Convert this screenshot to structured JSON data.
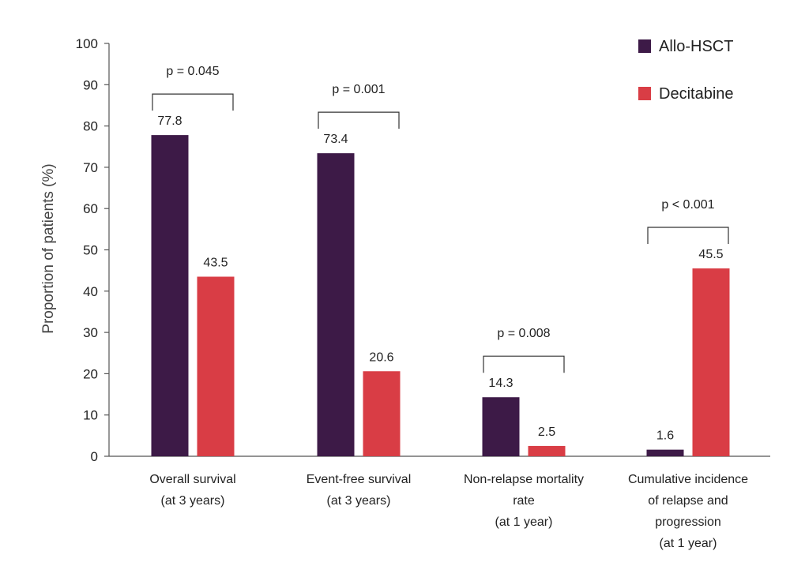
{
  "chart_data": {
    "type": "bar",
    "title": "",
    "xlabel": "",
    "ylabel": "Proportion of patients (%)",
    "ylim": [
      0,
      100
    ],
    "yticks": [
      0,
      10,
      20,
      30,
      40,
      50,
      60,
      70,
      80,
      90,
      100
    ],
    "grid": false,
    "legend_position": "top-right",
    "categories": [
      [
        "Overall survival",
        "(at 3 years)"
      ],
      [
        "Event-free survival",
        "(at 3 years)"
      ],
      [
        "Non-relapse mortality",
        "rate",
        "(at 1 year)"
      ],
      [
        "Cumulative incidence",
        "of relapse and",
        "progression",
        "(at 1 year)"
      ]
    ],
    "series": [
      {
        "name": "Allo-HSCT",
        "color": "#3d1a47",
        "values": [
          77.8,
          73.4,
          14.3,
          1.6
        ],
        "labels": [
          "77.8",
          "73.4",
          "14.3",
          "1.6"
        ]
      },
      {
        "name": "Decitabine",
        "color": "#d93d45",
        "values": [
          43.5,
          20.6,
          2.5,
          45.5
        ],
        "labels": [
          "43.5",
          "20.6",
          "2.5",
          "45.5"
        ]
      }
    ],
    "annotations": [
      "p = 0.045",
      "p = 0.001",
      "p = 0.008",
      "p < 0.001"
    ]
  }
}
